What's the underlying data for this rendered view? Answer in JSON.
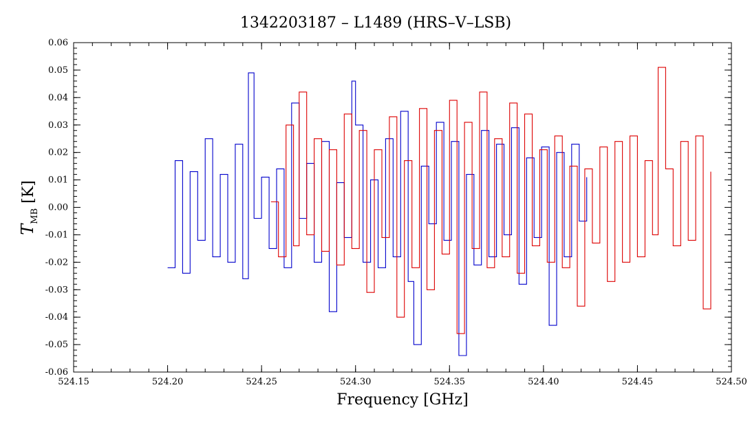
{
  "chart_data": {
    "type": "line",
    "title": "1342203187 – L1489 (HRS–V–LSB)",
    "xlabel": "Frequency [GHz]",
    "ylabel_main": "T",
    "ylabel_sub": "MB",
    "ylabel_unit": "[K]",
    "xlim": [
      524.15,
      524.5
    ],
    "ylim": [
      -0.06,
      0.06
    ],
    "x_ticks": [
      "524.15",
      "524.20",
      "524.25",
      "524.30",
      "524.35",
      "524.40",
      "524.45",
      "524.50"
    ],
    "x_tick_values": [
      524.15,
      524.2,
      524.25,
      524.3,
      524.35,
      524.4,
      524.45,
      524.5
    ],
    "y_ticks": [
      "0.06",
      "0.05",
      "0.04",
      "0.03",
      "0.02",
      "0.01",
      "0.00",
      "-0.01",
      "-0.02",
      "-0.03",
      "-0.04",
      "-0.05",
      "-0.06"
    ],
    "y_tick_values": [
      0.06,
      0.05,
      0.04,
      0.03,
      0.02,
      0.01,
      0.0,
      -0.01,
      -0.02,
      -0.03,
      -0.04,
      -0.05,
      -0.06
    ],
    "grid": false,
    "step": true,
    "series": [
      {
        "color": "#0000cc",
        "x": [
          524.2,
          524.204,
          524.208,
          524.212,
          524.216,
          524.22,
          524.224,
          524.228,
          524.232,
          524.236,
          524.24,
          524.243,
          524.246,
          524.25,
          524.254,
          524.258,
          524.262,
          524.266,
          524.27,
          524.274,
          524.278,
          524.282,
          524.286,
          524.29,
          524.294,
          524.298,
          524.3,
          524.304,
          524.308,
          524.312,
          524.316,
          524.32,
          524.324,
          524.328,
          524.331,
          524.335,
          524.339,
          524.343,
          524.347,
          524.351,
          524.355,
          524.359,
          524.363,
          524.367,
          524.371,
          524.375,
          524.379,
          524.383,
          524.387,
          524.391,
          524.395,
          524.399,
          524.403,
          524.407,
          524.411,
          524.415,
          524.419,
          524.423
        ],
        "y": [
          -0.022,
          0.017,
          -0.024,
          0.013,
          -0.012,
          0.025,
          -0.018,
          0.012,
          -0.02,
          0.023,
          -0.026,
          0.049,
          -0.004,
          0.011,
          -0.015,
          0.014,
          -0.022,
          0.038,
          -0.004,
          0.016,
          -0.02,
          0.024,
          -0.038,
          0.009,
          -0.011,
          0.046,
          0.03,
          -0.02,
          0.01,
          -0.022,
          0.025,
          -0.018,
          0.035,
          -0.027,
          -0.05,
          0.015,
          -0.006,
          0.031,
          -0.012,
          0.024,
          -0.054,
          0.012,
          -0.021,
          0.028,
          -0.018,
          0.023,
          -0.01,
          0.029,
          -0.028,
          0.018,
          -0.011,
          0.022,
          -0.043,
          0.02,
          -0.018,
          0.023,
          -0.005,
          0.011
        ]
      },
      {
        "color": "#dd0000",
        "x": [
          524.255,
          524.259,
          524.263,
          524.267,
          524.27,
          524.274,
          524.278,
          524.282,
          524.286,
          524.29,
          524.294,
          524.298,
          524.302,
          524.306,
          524.31,
          524.314,
          524.318,
          524.322,
          524.326,
          524.33,
          524.334,
          524.338,
          524.342,
          524.346,
          524.35,
          524.354,
          524.358,
          524.362,
          524.366,
          524.37,
          524.374,
          524.378,
          524.382,
          524.386,
          524.39,
          524.394,
          524.398,
          524.402,
          524.406,
          524.41,
          524.414,
          524.418,
          524.422,
          524.426,
          524.43,
          524.434,
          524.438,
          524.442,
          524.446,
          524.45,
          524.454,
          524.458,
          524.461,
          524.465,
          524.469,
          524.473,
          524.477,
          524.481,
          524.485,
          524.489
        ],
        "y": [
          0.002,
          -0.018,
          0.03,
          -0.014,
          0.042,
          -0.01,
          0.025,
          -0.016,
          0.021,
          -0.021,
          0.034,
          -0.015,
          0.028,
          -0.031,
          0.021,
          -0.011,
          0.033,
          -0.04,
          0.017,
          -0.022,
          0.036,
          -0.03,
          0.028,
          -0.017,
          0.039,
          -0.046,
          0.031,
          -0.015,
          0.042,
          -0.022,
          0.025,
          -0.018,
          0.038,
          -0.024,
          0.034,
          -0.014,
          0.021,
          -0.02,
          0.026,
          -0.022,
          0.015,
          -0.036,
          0.014,
          -0.013,
          0.022,
          -0.027,
          0.024,
          -0.02,
          0.026,
          -0.018,
          0.017,
          -0.01,
          0.051,
          0.014,
          -0.014,
          0.024,
          -0.012,
          0.026,
          -0.037,
          0.013
        ]
      }
    ]
  }
}
